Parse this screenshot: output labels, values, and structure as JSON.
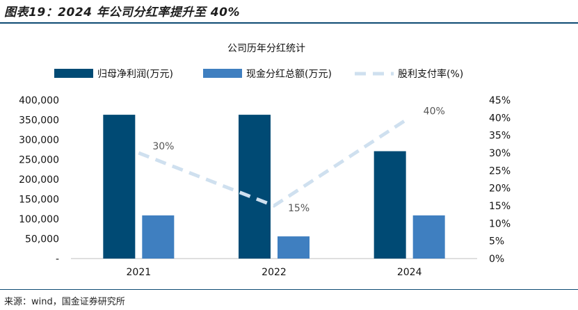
{
  "figure": {
    "title": "图表19：2024 年公司分红率提升至 40%",
    "source": "来源：wind，国金证券研究所"
  },
  "chart_data": {
    "type": "bar",
    "title": "公司历年分红统计",
    "categories": [
      "2021",
      "2022",
      "2024"
    ],
    "series": [
      {
        "name": "归母净利润(万元)",
        "type": "bar",
        "axis": "left",
        "color": "#004a74",
        "values": [
          363000,
          363000,
          271000
        ]
      },
      {
        "name": "现金分红总额(万元)",
        "type": "bar",
        "axis": "left",
        "color": "#3f7fc0",
        "values": [
          109000,
          56000,
          109000
        ]
      },
      {
        "name": "股利支付率(%)",
        "type": "line",
        "axis": "right",
        "color": "#cfe0ef",
        "dashed": true,
        "values": [
          30,
          15,
          40
        ],
        "labels": [
          "30%",
          "15%",
          "40%"
        ]
      }
    ],
    "y_left": {
      "min": 0,
      "max": 400000,
      "ticks": [
        "-",
        "50,000",
        "100,000",
        "150,000",
        "200,000",
        "250,000",
        "300,000",
        "350,000",
        "400,000"
      ]
    },
    "y_right": {
      "min": 0,
      "max": 45,
      "ticks": [
        "0%",
        "5%",
        "10%",
        "15%",
        "20%",
        "25%",
        "30%",
        "35%",
        "40%",
        "45%"
      ]
    },
    "legend_position": "top",
    "grid": false
  }
}
